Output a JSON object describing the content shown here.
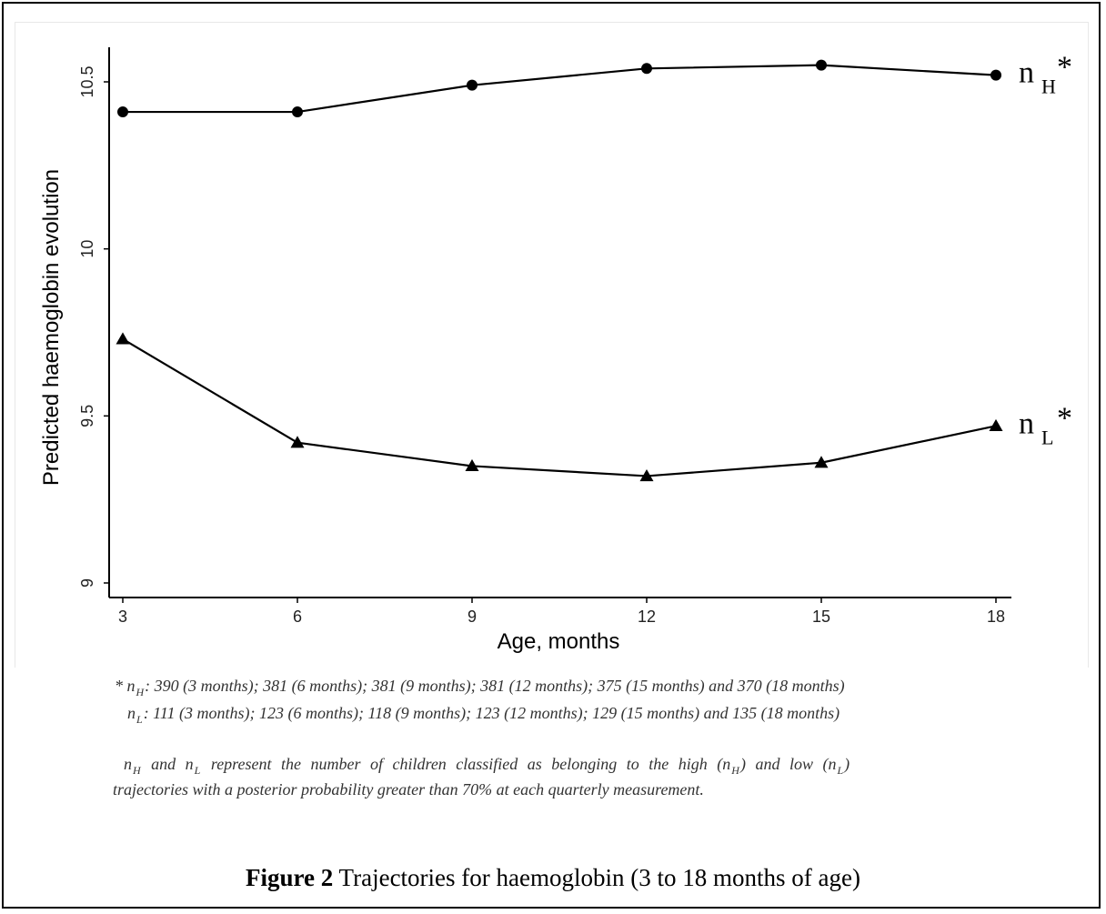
{
  "chart_data": {
    "type": "line",
    "x": [
      3,
      6,
      9,
      12,
      15,
      18
    ],
    "xlabel": "Age, months",
    "ylabel": "Predicted haemoglobin evolution",
    "xticks": [
      "3",
      "6",
      "9",
      "12",
      "15",
      "18"
    ],
    "yticks": [
      "9",
      "9.5",
      "10",
      "10.5"
    ],
    "ylim": [
      8.97,
      10.6
    ],
    "series": [
      {
        "name": "nH*",
        "label_main": "n",
        "label_sub": "H",
        "label_sup": "*",
        "marker": "circle",
        "values": [
          10.41,
          10.41,
          10.49,
          10.54,
          10.55,
          10.52
        ]
      },
      {
        "name": "nL*",
        "label_main": "n",
        "label_sub": "L",
        "label_sup": "*",
        "marker": "triangle",
        "values": [
          9.73,
          9.42,
          9.35,
          9.32,
          9.36,
          9.47
        ]
      }
    ],
    "grid": false,
    "legend": "right"
  },
  "notes": {
    "line1_prefix": "* n",
    "line1_sub": "H",
    "line1_text": ": 390 (3 months); 381 (6 months); 381 (9 months); 381 (12 months); 375 (15 months) and 370 (18 months)",
    "line2_prefix": "n",
    "line2_sub": "L",
    "line2_text": ": 111 (3 months); 123 (6 months); 118 (9 months); 123 (12 months); 129 (15 months) and 135 (18 months)",
    "line3_a": "n",
    "line3_sub_a": "H",
    "line3_b": "and n",
    "line3_sub_b": "L",
    "line3_c": "represent the number of children classified as belonging to the high (n",
    "line3_sub_c": "H",
    "line3_d": ") and low (n",
    "line3_sub_d": "L",
    "line3_e": ")",
    "line4": "trajectories with a posterior  probability greater than 70% at each quarterly measurement."
  },
  "caption": {
    "bold": "Figure 2",
    "text": " Trajectories for haemoglobin (3 to 18 months of age)"
  }
}
